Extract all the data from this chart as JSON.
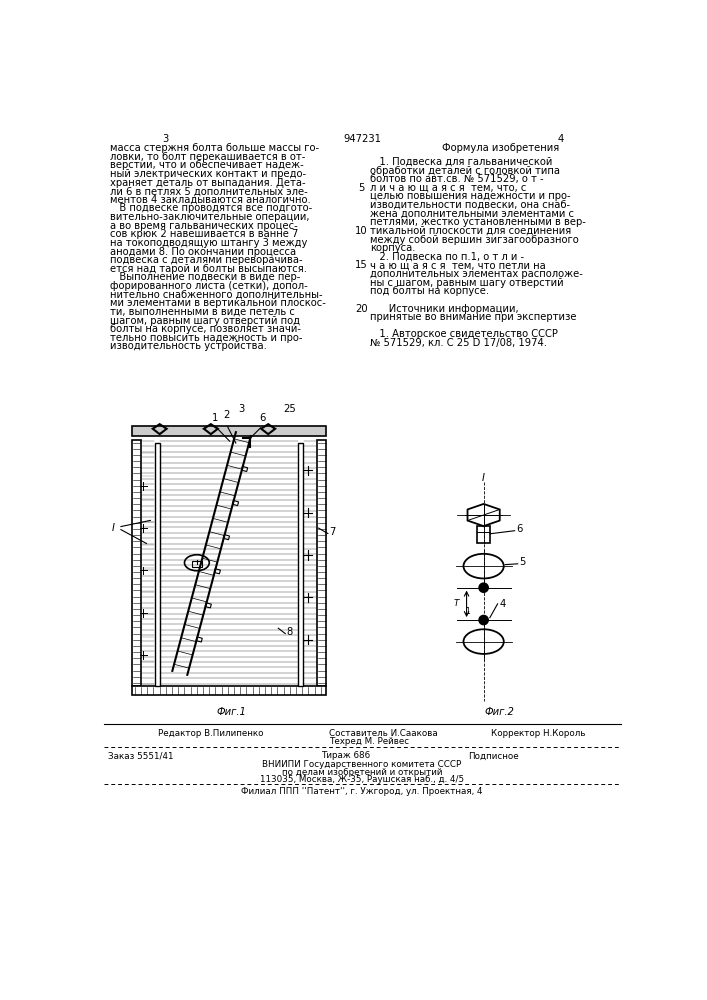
{
  "page_number_left": "3",
  "page_number_center": "947231",
  "page_number_right": "4",
  "left_col_text": [
    "масса стержня болта больше массы го-",
    "ловки, то болт перекашивается в от-",
    "верстии, что и обеспечивает надеж-",
    "ный электрических контакт и предо-",
    "храняет деталь от выпадания. Дета-",
    "ли 6 в петлях 5 дополнительных эле-",
    "ментов 4 закладываются аналогично.",
    "   В подвеске проводятся все подгото-",
    "вительно-заключительные операции,",
    "а во время гальванических процес-",
    "сов крюк 2 навешивается в ванне 7",
    "на токоподводящую штангу 3 между",
    "анодами 8. По окончании процесса",
    "подвеска с деталями переворачива-",
    "ется над тарой и болты высыпаются.",
    "   Выполнение подвески в виде пер-",
    "форированного листа (сетки), допол-",
    "нительно снабженного дополнительны-",
    "ми элементами в вертикальной плоскос-",
    "ти, выполненными в виде петель с",
    "шагом, равным шагу отверстий под",
    "болты на корпусе, позволяет значи-",
    "тельно повысить надежность и про-",
    "изводительность устройства."
  ],
  "right_col_header": "Формула изобретения",
  "right_col_text": [
    "   1. Подвеска для гальванической",
    "обработки деталей с головкой типа",
    "болтов по авт.св. № 571529, о т -",
    "л и ч а ю щ а я с я  тем, что, с",
    "целью повышения надежности и про-",
    "изводительности подвески, она снаб-",
    "жена дополнительными элементами с",
    "петлями, жестко установленными в вер-",
    "тикальной плоскости для соединения",
    "между собой вершин зигзагообразного",
    "корпуса.",
    "   2. Подвеска по п.1, о т л и -",
    "ч а ю щ а я с я  тем, что петли на",
    "дополнительных элементах расположе-",
    "ны с шагом, равным шагу отверстий",
    "под болты на корпусе.",
    "",
    "      Источники информации,",
    "принятые во внимание при экспертизе",
    "",
    "   1. Авторское свидетельство СССР",
    "№ 571529, кл. С 25 D 17/08, 1974."
  ],
  "line_numbers": [
    [
      5,
      4
    ],
    [
      10,
      9
    ],
    [
      15,
      14
    ],
    [
      20,
      18
    ],
    [
      25,
      10
    ]
  ],
  "fig1_label": "Фиг.1",
  "fig2_label": "Фиг.2",
  "bottom_editor": "Редактор В.Пилипенко",
  "bottom_composer": "Составитель И.Саакова",
  "bottom_corrector": "Корректор Н.Король",
  "bottom_tekhred": "Техред М. Рейвес",
  "bottom_order": "Заказ 5551/41",
  "bottom_circulation": "Тираж 686",
  "bottom_subscription": "Подписное",
  "bottom_vniiipi": "ВНИИПИ Государственного комитета СССР",
  "bottom_vniiipi2": "по делам изобретений и открытий",
  "bottom_address": "113035, Москва, Ж-35, Раушская наб., д. 4/5",
  "bottom_filial": "Филиал ППП ''Патент'', г. Ужгород, ул. Проектная, 4",
  "bg_color": "#ffffff",
  "text_color": "#000000"
}
